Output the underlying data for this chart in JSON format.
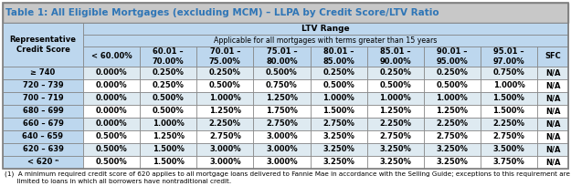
{
  "title": "Table 1: All Eligible Mortgages (excluding MCM) – LLPA by Credit Score/LTV Ratio",
  "ltv_range_label": "LTV Range",
  "applicable_label": "Applicable for all mortgages with terms greater than 15 years",
  "col_headers": [
    "< 60.00%",
    "60.01 –\n70.00%",
    "70.01 –\n75.00%",
    "75.01 –\n80.00%",
    "80.01 –\n85.00%",
    "85.01 –\n90.00%",
    "90.01 –\n95.00%",
    "95.01 –\n97.00%",
    "SFC"
  ],
  "row_headers": [
    "≥ 740",
    "720 – 739",
    "700 – 719",
    "680 – 699",
    "660 – 679",
    "640 – 659",
    "620 – 639",
    "< 620 ⁿ"
  ],
  "data": [
    [
      "0.000%",
      "0.250%",
      "0.250%",
      "0.500%",
      "0.250%",
      "0.250%",
      "0.250%",
      "0.750%",
      "N/A"
    ],
    [
      "0.000%",
      "0.250%",
      "0.500%",
      "0.750%",
      "0.500%",
      "0.500%",
      "0.500%",
      "1.000%",
      "N/A"
    ],
    [
      "0.000%",
      "0.500%",
      "1.000%",
      "1.250%",
      "1.000%",
      "1.000%",
      "1.000%",
      "1.500%",
      "N/A"
    ],
    [
      "0.000%",
      "0.500%",
      "1.250%",
      "1.750%",
      "1.500%",
      "1.250%",
      "1.250%",
      "1.500%",
      "N/A"
    ],
    [
      "0.000%",
      "1.000%",
      "2.250%",
      "2.750%",
      "2.750%",
      "2.250%",
      "2.250%",
      "2.250%",
      "N/A"
    ],
    [
      "0.500%",
      "1.250%",
      "2.750%",
      "3.000%",
      "3.250%",
      "2.750%",
      "2.750%",
      "2.750%",
      "N/A"
    ],
    [
      "0.500%",
      "1.500%",
      "3.000%",
      "3.000%",
      "3.250%",
      "3.250%",
      "3.250%",
      "3.500%",
      "N/A"
    ],
    [
      "0.500%",
      "1.500%",
      "3.000%",
      "3.000%",
      "3.250%",
      "3.250%",
      "3.250%",
      "3.750%",
      "N/A"
    ]
  ],
  "footnote_line1": "(1)  A minimum required credit score of 620 applies to all mortgage loans delivered to Fannie Mae in accordance with the Selling Guide; exceptions to this requirement are",
  "footnote_line2": "      limited to loans in which all borrowers have nontraditional credit.",
  "title_bg": "#C8C8C8",
  "title_fg": "#2E75B6",
  "header_bg": "#BDD7EE",
  "header_fg": "#000000",
  "row_label_bg": "#BDD7EE",
  "data_row_bg_even": "#DEEAF1",
  "data_row_bg_odd": "#FFFFFF",
  "border_color": "#7F7F7F",
  "outer_border_color": "#7F7F7F",
  "footnote_color": "#000000",
  "footnote_size": 5.2,
  "title_fontsize": 7.5,
  "header_fontsize": 6.0,
  "cell_fontsize": 6.0
}
